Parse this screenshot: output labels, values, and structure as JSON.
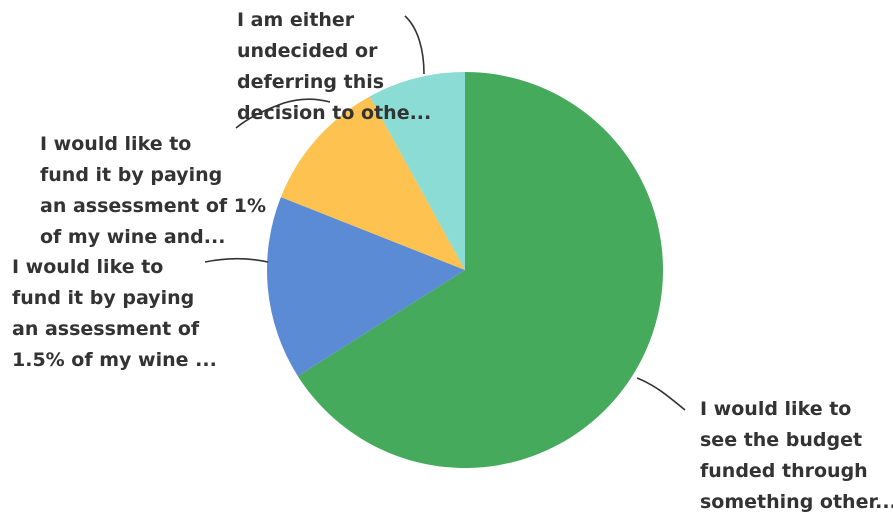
{
  "chart_data": {
    "type": "pie",
    "start_angle_deg": 0,
    "direction": "clockwise",
    "slices": [
      {
        "label_lines": [
          "I would like to",
          "see the budget",
          "funded through",
          "something other..."
        ],
        "value": 66,
        "color": "#45aa5b"
      },
      {
        "label_lines": [
          "I would like to",
          "fund it by paying",
          "an assessment of",
          "1.5% of my wine ..."
        ],
        "value": 15,
        "color": "#5b8bd5"
      },
      {
        "label_lines": [
          "I would like to",
          "fund it by paying",
          "an assessment of 1%",
          "of my wine and..."
        ],
        "value": 11,
        "color": "#fdc24f"
      },
      {
        "label_lines": [
          "I am either",
          "undecided or",
          "deferring this",
          "decision to othe..."
        ],
        "value": 8,
        "color": "#8bdcd4"
      }
    ]
  }
}
